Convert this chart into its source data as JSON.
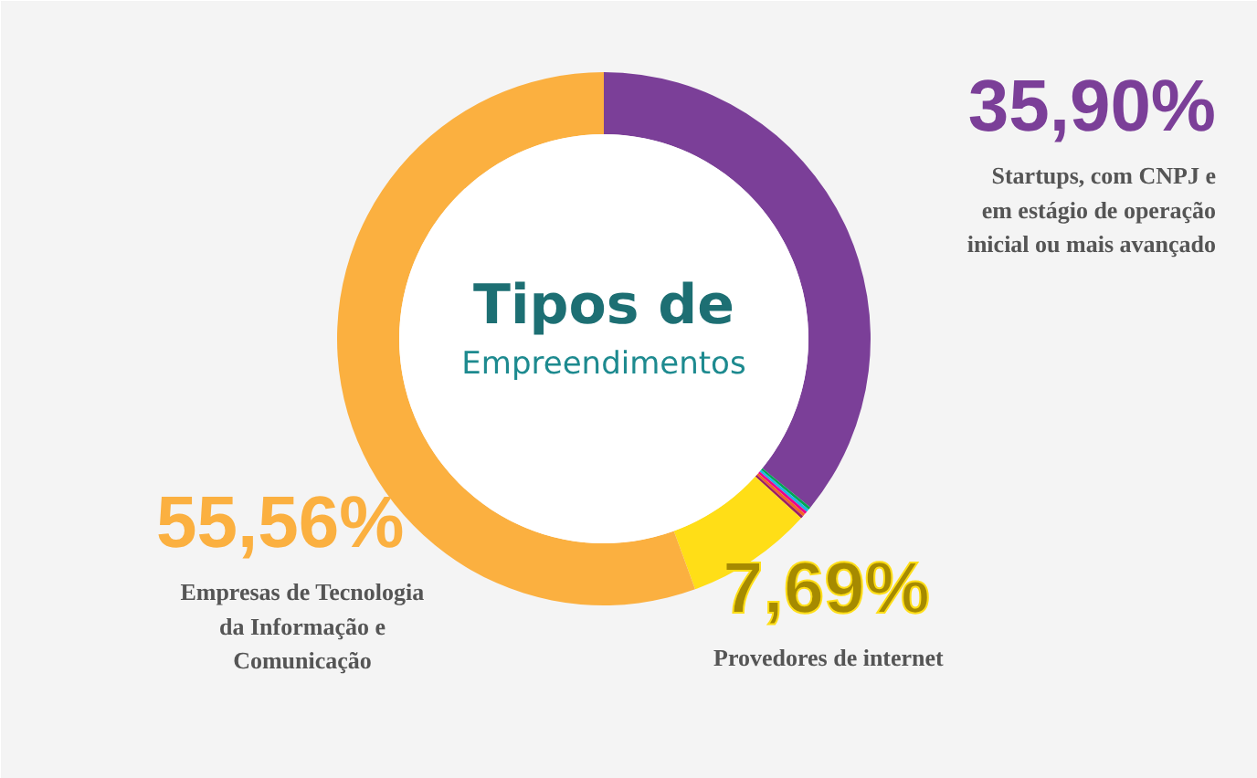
{
  "chart_data": {
    "type": "donut",
    "title": "Tipos de",
    "subtitle": "Empreendimentos",
    "categories": [
      "Startups, com CNPJ e\nem estágio de operação\ninicial ou mais avançado",
      null,
      null,
      null,
      null,
      null,
      "Provedores de internet",
      "Empresas de Tecnologia\nda Informação e\nComunicação"
    ],
    "values": [
      35.9,
      0.17,
      0.17,
      0.17,
      0.17,
      0.17,
      7.69,
      55.56
    ],
    "colors": [
      "#7b3f98",
      "#00a651",
      "#1fb5e6",
      "#ec008c",
      "#f26522",
      "#9e1f63",
      "#ffde17",
      "#fbb040"
    ],
    "value_labels": [
      "35,90%",
      null,
      null,
      null,
      null,
      null,
      "7,69%",
      "55,56%"
    ],
    "legend": false
  }
}
